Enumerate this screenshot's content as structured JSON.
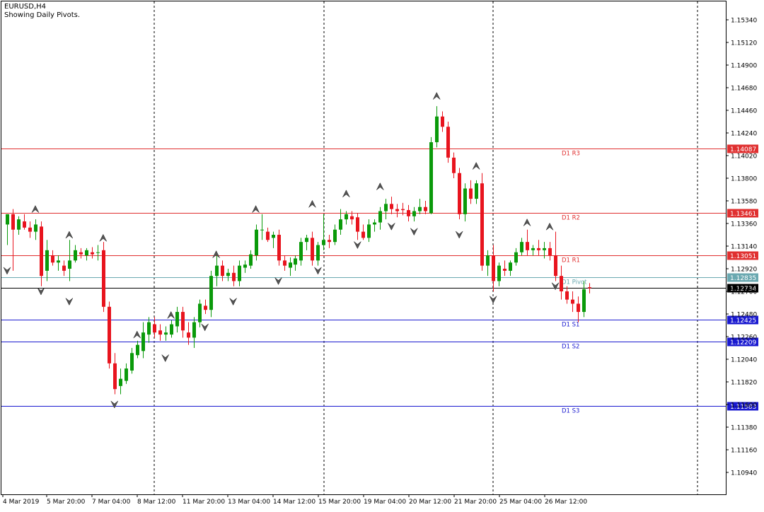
{
  "header": {
    "symbol": "EURUSD,H4",
    "subtitle": "Showing Daily Pivots."
  },
  "colors": {
    "bull": "#0a9a0a",
    "bear": "#e8141e",
    "resistance": "#e03030",
    "support": "#1a1ad0",
    "pivot": "#6aa8b0",
    "current": "#000000"
  },
  "y_axis_ticks": [
    "1.15340",
    "1.15120",
    "1.14900",
    "1.14680",
    "1.14460",
    "1.14240",
    "1.14020",
    "1.13800",
    "1.13580",
    "1.13360",
    "1.13140",
    "1.12920",
    "1.12700",
    "1.12480",
    "1.12260",
    "1.12040",
    "1.11820",
    "1.11600",
    "1.11380",
    "1.11160",
    "1.10940"
  ],
  "x_axis_ticks": [
    "4 Mar 2019",
    "5 Mar 20:00",
    "7 Mar 04:00",
    "8 Mar 12:00",
    "11 Mar 20:00",
    "13 Mar 04:00",
    "14 Mar 12:00",
    "15 Mar 20:00",
    "19 Mar 04:00",
    "20 Mar 12:00",
    "21 Mar 20:00",
    "25 Mar 04:00",
    "26 Mar 12:00"
  ],
  "pivot_levels": [
    {
      "label": "D1  R3",
      "price": "1.14087",
      "type": "resistance"
    },
    {
      "label": "D1  R2",
      "price": "1.13461",
      "type": "resistance"
    },
    {
      "label": "D1  R1",
      "price": "1.13051",
      "type": "resistance"
    },
    {
      "label": "D1  Pivot",
      "price": "1.12835",
      "type": "pivot"
    },
    {
      "label": "D1  S1",
      "price": "1.12425",
      "type": "support"
    },
    {
      "label": "D1  S2",
      "price": "1.12209",
      "type": "support"
    },
    {
      "label": "D1  S3",
      "price": "1.11583",
      "type": "support"
    }
  ],
  "current_price": "1.12734",
  "chart_data": {
    "type": "candlestick",
    "title": "EURUSD,H4",
    "subtitle": "Showing Daily Pivots.",
    "ylim": [
      1.108,
      1.1555
    ],
    "candles": [
      {
        "o": 1.1335,
        "h": 1.1345,
        "l": 1.1315,
        "c": 1.1345
      },
      {
        "o": 1.1345,
        "h": 1.135,
        "l": 1.129,
        "c": 1.133
      },
      {
        "o": 1.133,
        "h": 1.1343,
        "l": 1.1325,
        "c": 1.134
      },
      {
        "o": 1.1338,
        "h": 1.1345,
        "l": 1.133,
        "c": 1.1332
      },
      {
        "o": 1.1332,
        "h": 1.1338,
        "l": 1.1322,
        "c": 1.1328
      },
      {
        "o": 1.1328,
        "h": 1.134,
        "l": 1.132,
        "c": 1.1335
      },
      {
        "o": 1.1333,
        "h": 1.1338,
        "l": 1.1275,
        "c": 1.1285
      },
      {
        "o": 1.129,
        "h": 1.132,
        "l": 1.128,
        "c": 1.131
      },
      {
        "o": 1.1305,
        "h": 1.131,
        "l": 1.1295,
        "c": 1.1298
      },
      {
        "o": 1.1298,
        "h": 1.1305,
        "l": 1.129,
        "c": 1.13
      },
      {
        "o": 1.1295,
        "h": 1.13,
        "l": 1.1285,
        "c": 1.129
      },
      {
        "o": 1.1292,
        "h": 1.132,
        "l": 1.128,
        "c": 1.13
      },
      {
        "o": 1.13,
        "h": 1.1315,
        "l": 1.1298,
        "c": 1.131
      },
      {
        "o": 1.1308,
        "h": 1.1312,
        "l": 1.1302,
        "c": 1.1306
      },
      {
        "o": 1.1305,
        "h": 1.1312,
        "l": 1.13,
        "c": 1.131
      },
      {
        "o": 1.1308,
        "h": 1.1313,
        "l": 1.1302,
        "c": 1.1306
      },
      {
        "o": 1.1308,
        "h": 1.1315,
        "l": 1.13,
        "c": 1.1308
      },
      {
        "o": 1.131,
        "h": 1.1318,
        "l": 1.125,
        "c": 1.1255
      },
      {
        "o": 1.1255,
        "h": 1.126,
        "l": 1.1195,
        "c": 1.12
      },
      {
        "o": 1.12,
        "h": 1.121,
        "l": 1.117,
        "c": 1.1175
      },
      {
        "o": 1.1178,
        "h": 1.1195,
        "l": 1.117,
        "c": 1.1185
      },
      {
        "o": 1.1183,
        "h": 1.12,
        "l": 1.118,
        "c": 1.1195
      },
      {
        "o": 1.1193,
        "h": 1.1215,
        "l": 1.119,
        "c": 1.121
      },
      {
        "o": 1.1208,
        "h": 1.1222,
        "l": 1.1205,
        "c": 1.1218
      },
      {
        "o": 1.1212,
        "h": 1.124,
        "l": 1.1205,
        "c": 1.123
      },
      {
        "o": 1.1228,
        "h": 1.1245,
        "l": 1.122,
        "c": 1.124
      },
      {
        "o": 1.1238,
        "h": 1.1245,
        "l": 1.1225,
        "c": 1.123
      },
      {
        "o": 1.1232,
        "h": 1.1238,
        "l": 1.1222,
        "c": 1.1228
      },
      {
        "o": 1.1228,
        "h": 1.1236,
        "l": 1.1222,
        "c": 1.123
      },
      {
        "o": 1.1228,
        "h": 1.1242,
        "l": 1.1225,
        "c": 1.1238
      },
      {
        "o": 1.1236,
        "h": 1.1255,
        "l": 1.123,
        "c": 1.125
      },
      {
        "o": 1.125,
        "h": 1.1255,
        "l": 1.1225,
        "c": 1.1232
      },
      {
        "o": 1.123,
        "h": 1.124,
        "l": 1.1218,
        "c": 1.1225
      },
      {
        "o": 1.1225,
        "h": 1.1245,
        "l": 1.1215,
        "c": 1.124
      },
      {
        "o": 1.124,
        "h": 1.1262,
        "l": 1.1235,
        "c": 1.1258
      },
      {
        "o": 1.1256,
        "h": 1.1262,
        "l": 1.1248,
        "c": 1.1252
      },
      {
        "o": 1.1252,
        "h": 1.129,
        "l": 1.1245,
        "c": 1.1285
      },
      {
        "o": 1.1285,
        "h": 1.1305,
        "l": 1.1275,
        "c": 1.1295
      },
      {
        "o": 1.1295,
        "h": 1.13,
        "l": 1.128,
        "c": 1.1285
      },
      {
        "o": 1.1285,
        "h": 1.1292,
        "l": 1.128,
        "c": 1.1288
      },
      {
        "o": 1.1288,
        "h": 1.1295,
        "l": 1.1275,
        "c": 1.128
      },
      {
        "o": 1.128,
        "h": 1.13,
        "l": 1.1275,
        "c": 1.1295
      },
      {
        "o": 1.1293,
        "h": 1.13,
        "l": 1.1288,
        "c": 1.1296
      },
      {
        "o": 1.1295,
        "h": 1.131,
        "l": 1.1292,
        "c": 1.1306
      },
      {
        "o": 1.1305,
        "h": 1.1335,
        "l": 1.13,
        "c": 1.133
      },
      {
        "o": 1.133,
        "h": 1.1345,
        "l": 1.132,
        "c": 1.133
      },
      {
        "o": 1.1328,
        "h": 1.1332,
        "l": 1.1318,
        "c": 1.132
      },
      {
        "o": 1.1322,
        "h": 1.1328,
        "l": 1.1312,
        "c": 1.1325
      },
      {
        "o": 1.1325,
        "h": 1.133,
        "l": 1.1295,
        "c": 1.13
      },
      {
        "o": 1.13,
        "h": 1.1305,
        "l": 1.129,
        "c": 1.1295
      },
      {
        "o": 1.1293,
        "h": 1.1303,
        "l": 1.1285,
        "c": 1.1298
      },
      {
        "o": 1.1296,
        "h": 1.1305,
        "l": 1.129,
        "c": 1.1302
      },
      {
        "o": 1.13,
        "h": 1.1322,
        "l": 1.1295,
        "c": 1.1318
      },
      {
        "o": 1.1318,
        "h": 1.1325,
        "l": 1.131,
        "c": 1.1322
      },
      {
        "o": 1.1322,
        "h": 1.1328,
        "l": 1.1295,
        "c": 1.13
      },
      {
        "o": 1.13,
        "h": 1.1318,
        "l": 1.1295,
        "c": 1.1315
      },
      {
        "o": 1.1315,
        "h": 1.1345,
        "l": 1.131,
        "c": 1.132
      },
      {
        "o": 1.132,
        "h": 1.1325,
        "l": 1.1312,
        "c": 1.1318
      },
      {
        "o": 1.1318,
        "h": 1.1335,
        "l": 1.1315,
        "c": 1.133
      },
      {
        "o": 1.133,
        "h": 1.135,
        "l": 1.1325,
        "c": 1.134
      },
      {
        "o": 1.134,
        "h": 1.1348,
        "l": 1.1335,
        "c": 1.1345
      },
      {
        "o": 1.1343,
        "h": 1.1348,
        "l": 1.1335,
        "c": 1.134
      },
      {
        "o": 1.1342,
        "h": 1.1346,
        "l": 1.132,
        "c": 1.1328
      },
      {
        "o": 1.1328,
        "h": 1.1335,
        "l": 1.132,
        "c": 1.1322
      },
      {
        "o": 1.1322,
        "h": 1.134,
        "l": 1.1318,
        "c": 1.1335
      },
      {
        "o": 1.1335,
        "h": 1.134,
        "l": 1.1328,
        "c": 1.1337
      },
      {
        "o": 1.1337,
        "h": 1.1352,
        "l": 1.133,
        "c": 1.1348
      },
      {
        "o": 1.1348,
        "h": 1.136,
        "l": 1.134,
        "c": 1.1355
      },
      {
        "o": 1.1355,
        "h": 1.1362,
        "l": 1.1345,
        "c": 1.135
      },
      {
        "o": 1.135,
        "h": 1.1355,
        "l": 1.1342,
        "c": 1.1348
      },
      {
        "o": 1.135,
        "h": 1.1356,
        "l": 1.1344,
        "c": 1.1349
      },
      {
        "o": 1.1349,
        "h": 1.1354,
        "l": 1.1338,
        "c": 1.1343
      },
      {
        "o": 1.1343,
        "h": 1.1352,
        "l": 1.1338,
        "c": 1.1348
      },
      {
        "o": 1.1348,
        "h": 1.136,
        "l": 1.1345,
        "c": 1.1352
      },
      {
        "o": 1.1352,
        "h": 1.1358,
        "l": 1.1345,
        "c": 1.1348
      },
      {
        "o": 1.1346,
        "h": 1.142,
        "l": 1.1345,
        "c": 1.1415
      },
      {
        "o": 1.1415,
        "h": 1.145,
        "l": 1.141,
        "c": 1.144
      },
      {
        "o": 1.144,
        "h": 1.1445,
        "l": 1.1425,
        "c": 1.143
      },
      {
        "o": 1.143,
        "h": 1.1435,
        "l": 1.1395,
        "c": 1.14
      },
      {
        "o": 1.14,
        "h": 1.1405,
        "l": 1.138,
        "c": 1.1385
      },
      {
        "o": 1.1385,
        "h": 1.139,
        "l": 1.134,
        "c": 1.1345
      },
      {
        "o": 1.1345,
        "h": 1.1375,
        "l": 1.1338,
        "c": 1.137
      },
      {
        "o": 1.137,
        "h": 1.1378,
        "l": 1.1355,
        "c": 1.136
      },
      {
        "o": 1.136,
        "h": 1.1378,
        "l": 1.1355,
        "c": 1.1375
      },
      {
        "o": 1.1375,
        "h": 1.1385,
        "l": 1.129,
        "c": 1.1295
      },
      {
        "o": 1.1295,
        "h": 1.131,
        "l": 1.1285,
        "c": 1.1305
      },
      {
        "o": 1.1305,
        "h": 1.1315,
        "l": 1.127,
        "c": 1.128
      },
      {
        "o": 1.128,
        "h": 1.1298,
        "l": 1.1275,
        "c": 1.1295
      },
      {
        "o": 1.1292,
        "h": 1.13,
        "l": 1.1285,
        "c": 1.129
      },
      {
        "o": 1.129,
        "h": 1.13,
        "l": 1.1285,
        "c": 1.1298
      },
      {
        "o": 1.1298,
        "h": 1.1312,
        "l": 1.1295,
        "c": 1.1308
      },
      {
        "o": 1.1308,
        "h": 1.1322,
        "l": 1.1305,
        "c": 1.1318
      },
      {
        "o": 1.1318,
        "h": 1.133,
        "l": 1.1305,
        "c": 1.131
      },
      {
        "o": 1.131,
        "h": 1.1315,
        "l": 1.1305,
        "c": 1.1312
      },
      {
        "o": 1.1312,
        "h": 1.132,
        "l": 1.1305,
        "c": 1.131
      },
      {
        "o": 1.131,
        "h": 1.1318,
        "l": 1.1302,
        "c": 1.1312
      },
      {
        "o": 1.1312,
        "h": 1.1318,
        "l": 1.13,
        "c": 1.1305
      },
      {
        "o": 1.1305,
        "h": 1.1328,
        "l": 1.128,
        "c": 1.1285
      },
      {
        "o": 1.1285,
        "h": 1.1295,
        "l": 1.1262,
        "c": 1.127
      },
      {
        "o": 1.127,
        "h": 1.1275,
        "l": 1.1258,
        "c": 1.1262
      },
      {
        "o": 1.1262,
        "h": 1.127,
        "l": 1.125,
        "c": 1.1258
      },
      {
        "o": 1.1258,
        "h": 1.1265,
        "l": 1.124,
        "c": 1.125
      },
      {
        "o": 1.125,
        "h": 1.128,
        "l": 1.1245,
        "c": 1.1272
      },
      {
        "o": 1.1274,
        "h": 1.1278,
        "l": 1.1268,
        "c": 1.1273
      }
    ],
    "fractals": [
      {
        "i": 0,
        "p": 1.129,
        "dir": "down"
      },
      {
        "i": 5,
        "p": 1.135,
        "dir": "up"
      },
      {
        "i": 6,
        "p": 1.127,
        "dir": "down"
      },
      {
        "i": 11,
        "p": 1.1325,
        "dir": "up"
      },
      {
        "i": 11,
        "p": 1.126,
        "dir": "down"
      },
      {
        "i": 17,
        "p": 1.1322,
        "dir": "up"
      },
      {
        "i": 19,
        "p": 1.116,
        "dir": "down"
      },
      {
        "i": 23,
        "p": 1.1228,
        "dir": "up"
      },
      {
        "i": 28,
        "p": 1.1205,
        "dir": "down"
      },
      {
        "i": 29,
        "p": 1.1247,
        "dir": "up"
      },
      {
        "i": 35,
        "p": 1.1235,
        "dir": "down"
      },
      {
        "i": 37,
        "p": 1.1306,
        "dir": "up"
      },
      {
        "i": 40,
        "p": 1.126,
        "dir": "down"
      },
      {
        "i": 44,
        "p": 1.135,
        "dir": "up"
      },
      {
        "i": 48,
        "p": 1.128,
        "dir": "down"
      },
      {
        "i": 54,
        "p": 1.1355,
        "dir": "up"
      },
      {
        "i": 55,
        "p": 1.129,
        "dir": "down"
      },
      {
        "i": 60,
        "p": 1.1365,
        "dir": "up"
      },
      {
        "i": 62,
        "p": 1.1315,
        "dir": "down"
      },
      {
        "i": 66,
        "p": 1.1372,
        "dir": "up"
      },
      {
        "i": 68,
        "p": 1.1333,
        "dir": "down"
      },
      {
        "i": 72,
        "p": 1.1328,
        "dir": "down"
      },
      {
        "i": 76,
        "p": 1.146,
        "dir": "up"
      },
      {
        "i": 80,
        "p": 1.1325,
        "dir": "down"
      },
      {
        "i": 83,
        "p": 1.1392,
        "dir": "up"
      },
      {
        "i": 86,
        "p": 1.1262,
        "dir": "down"
      },
      {
        "i": 92,
        "p": 1.1337,
        "dir": "up"
      },
      {
        "i": 96,
        "p": 1.1333,
        "dir": "up"
      },
      {
        "i": 97,
        "p": 1.1275,
        "dir": "down"
      }
    ]
  }
}
